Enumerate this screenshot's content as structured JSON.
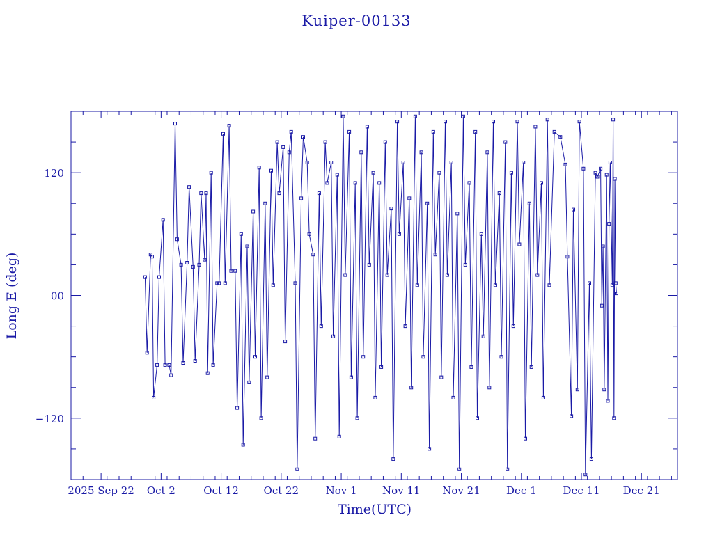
{
  "chart_data": {
    "type": "scatter",
    "title": "Kuiper-00133",
    "xlabel": "Time(UTC)",
    "ylabel": "Long E (deg)",
    "x_ticks": [
      "2025 Sep 22",
      "Oct  2",
      "Oct 12",
      "Oct 22",
      "Nov  1",
      "Nov 11",
      "Nov 21",
      "Dec  1",
      "Dec 11",
      "Dec 21"
    ],
    "y_ticks": [
      "−120",
      "00",
      "120"
    ],
    "y_tick_values": [
      -120,
      0,
      120
    ],
    "xlim": [
      "2025-09-17",
      "2025-12-27"
    ],
    "ylim": [
      -180,
      180
    ],
    "data_start": "2025-09-29",
    "data_end": "2025-12-16",
    "series": [
      {
        "marker": "square",
        "connected": true,
        "points": [
          [
            "2025-09-29",
            18
          ],
          [
            "2025-09-29",
            -56
          ],
          [
            "2025-09-30",
            40
          ],
          [
            "2025-09-30",
            38
          ],
          [
            "2025-09-30",
            -100
          ],
          [
            "2025-10-01",
            -68
          ],
          [
            "2025-10-01",
            18
          ],
          [
            "2025-10-02",
            74
          ],
          [
            "2025-10-02",
            -68
          ],
          [
            "2025-10-03",
            -68
          ],
          [
            "2025-10-03",
            -78
          ],
          [
            "2025-10-04",
            168
          ],
          [
            "2025-10-04",
            55
          ],
          [
            "2025-10-05",
            30
          ],
          [
            "2025-10-05",
            -66
          ],
          [
            "2025-10-06",
            32
          ],
          [
            "2025-10-06",
            106
          ],
          [
            "2025-10-07",
            28
          ],
          [
            "2025-10-07",
            -64
          ],
          [
            "2025-10-08",
            30
          ],
          [
            "2025-10-08",
            100
          ],
          [
            "2025-10-09",
            35
          ],
          [
            "2025-10-09",
            100
          ],
          [
            "2025-10-09",
            -76
          ],
          [
            "2025-10-10",
            120
          ],
          [
            "2025-10-10",
            -68
          ],
          [
            "2025-10-11",
            12
          ],
          [
            "2025-10-11",
            12
          ],
          [
            "2025-10-12",
            158
          ],
          [
            "2025-10-12",
            12
          ],
          [
            "2025-10-13",
            166
          ],
          [
            "2025-10-13",
            24
          ],
          [
            "2025-10-14",
            24
          ],
          [
            "2025-10-14",
            -110
          ],
          [
            "2025-10-15",
            60
          ],
          [
            "2025-10-15",
            -146
          ],
          [
            "2025-10-16",
            48
          ],
          [
            "2025-10-16",
            -85
          ],
          [
            "2025-10-17",
            82
          ],
          [
            "2025-10-17",
            -60
          ],
          [
            "2025-10-18",
            125
          ],
          [
            "2025-10-18",
            -120
          ],
          [
            "2025-10-19",
            90
          ],
          [
            "2025-10-19",
            -80
          ],
          [
            "2025-10-20",
            122
          ],
          [
            "2025-10-20",
            10
          ],
          [
            "2025-10-21",
            150
          ],
          [
            "2025-10-21",
            100
          ],
          [
            "2025-10-22",
            145
          ],
          [
            "2025-10-22",
            -45
          ],
          [
            "2025-10-23",
            140
          ],
          [
            "2025-10-23",
            160
          ],
          [
            "2025-10-24",
            12
          ],
          [
            "2025-10-24",
            -170
          ],
          [
            "2025-10-25",
            95
          ],
          [
            "2025-10-25",
            155
          ],
          [
            "2025-10-26",
            130
          ],
          [
            "2025-10-26",
            60
          ],
          [
            "2025-10-27",
            40
          ],
          [
            "2025-10-27",
            -140
          ],
          [
            "2025-10-28",
            100
          ],
          [
            "2025-10-28",
            -30
          ],
          [
            "2025-10-29",
            150
          ],
          [
            "2025-10-29",
            110
          ],
          [
            "2025-10-30",
            130
          ],
          [
            "2025-10-30",
            -40
          ],
          [
            "2025-10-31",
            118
          ],
          [
            "2025-10-31",
            -138
          ],
          [
            "2025-11-01",
            175
          ],
          [
            "2025-11-01",
            20
          ],
          [
            "2025-11-02",
            160
          ],
          [
            "2025-11-02",
            -80
          ],
          [
            "2025-11-03",
            110
          ],
          [
            "2025-11-03",
            -120
          ],
          [
            "2025-11-04",
            140
          ],
          [
            "2025-11-04",
            -60
          ],
          [
            "2025-11-05",
            165
          ],
          [
            "2025-11-05",
            30
          ],
          [
            "2025-11-06",
            120
          ],
          [
            "2025-11-06",
            -100
          ],
          [
            "2025-11-07",
            110
          ],
          [
            "2025-11-07",
            -70
          ],
          [
            "2025-11-08",
            150
          ],
          [
            "2025-11-08",
            20
          ],
          [
            "2025-11-09",
            85
          ],
          [
            "2025-11-09",
            -160
          ],
          [
            "2025-11-10",
            170
          ],
          [
            "2025-11-10",
            60
          ],
          [
            "2025-11-11",
            130
          ],
          [
            "2025-11-11",
            -30
          ],
          [
            "2025-11-12",
            95
          ],
          [
            "2025-11-12",
            -90
          ],
          [
            "2025-11-13",
            175
          ],
          [
            "2025-11-13",
            10
          ],
          [
            "2025-11-14",
            140
          ],
          [
            "2025-11-14",
            -60
          ],
          [
            "2025-11-15",
            90
          ],
          [
            "2025-11-15",
            -150
          ],
          [
            "2025-11-16",
            160
          ],
          [
            "2025-11-16",
            40
          ],
          [
            "2025-11-17",
            120
          ],
          [
            "2025-11-17",
            -80
          ],
          [
            "2025-11-18",
            170
          ],
          [
            "2025-11-18",
            20
          ],
          [
            "2025-11-19",
            130
          ],
          [
            "2025-11-19",
            -100
          ],
          [
            "2025-11-20",
            80
          ],
          [
            "2025-11-20",
            -170
          ],
          [
            "2025-11-21",
            175
          ],
          [
            "2025-11-21",
            30
          ],
          [
            "2025-11-22",
            110
          ],
          [
            "2025-11-22",
            -70
          ],
          [
            "2025-11-23",
            160
          ],
          [
            "2025-11-23",
            -120
          ],
          [
            "2025-11-24",
            60
          ],
          [
            "2025-11-24",
            -40
          ],
          [
            "2025-11-25",
            140
          ],
          [
            "2025-11-25",
            -90
          ],
          [
            "2025-11-26",
            170
          ],
          [
            "2025-11-26",
            10
          ],
          [
            "2025-11-27",
            100
          ],
          [
            "2025-11-27",
            -60
          ],
          [
            "2025-11-28",
            150
          ],
          [
            "2025-11-28",
            -170
          ],
          [
            "2025-11-29",
            120
          ],
          [
            "2025-11-29",
            -30
          ],
          [
            "2025-11-30",
            170
          ],
          [
            "2025-11-30",
            50
          ],
          [
            "2025-12-01",
            130
          ],
          [
            "2025-12-01",
            -140
          ],
          [
            "2025-12-02",
            90
          ],
          [
            "2025-12-02",
            -70
          ],
          [
            "2025-12-03",
            165
          ],
          [
            "2025-12-03",
            20
          ],
          [
            "2025-12-04",
            110
          ],
          [
            "2025-12-04",
            -100
          ],
          [
            "2025-12-05",
            172
          ],
          [
            "2025-12-05",
            10
          ],
          [
            "2025-12-06",
            160
          ],
          [
            "2025-12-07",
            155
          ],
          [
            "2025-12-08",
            128
          ],
          [
            "2025-12-08",
            38
          ],
          [
            "2025-12-09",
            -118
          ],
          [
            "2025-12-09",
            84
          ],
          [
            "2025-12-10",
            -92
          ],
          [
            "2025-12-10",
            170
          ],
          [
            "2025-12-11",
            124
          ],
          [
            "2025-12-11",
            -175
          ],
          [
            "2025-12-12",
            12
          ],
          [
            "2025-12-12",
            -160
          ],
          [
            "2025-12-13",
            120
          ],
          [
            "2025-12-13",
            116
          ],
          [
            "2025-12-14",
            124
          ],
          [
            "2025-12-14",
            -10
          ],
          [
            "2025-12-14",
            48
          ],
          [
            "2025-12-14",
            -92
          ],
          [
            "2025-12-15",
            118
          ],
          [
            "2025-12-15",
            -103
          ],
          [
            "2025-12-15",
            70
          ],
          [
            "2025-12-15",
            130
          ],
          [
            "2025-12-16",
            10
          ],
          [
            "2025-12-16",
            172
          ],
          [
            "2025-12-16",
            -120
          ],
          [
            "2025-12-16",
            114
          ],
          [
            "2025-12-16",
            12
          ],
          [
            "2025-12-16",
            2
          ]
        ]
      }
    ],
    "grid": false,
    "legend": "none",
    "colors": {
      "line": "#1a1aa6",
      "axes": "#1a1aa6",
      "text": "#1a1aa6",
      "background": "#ffffff"
    }
  }
}
